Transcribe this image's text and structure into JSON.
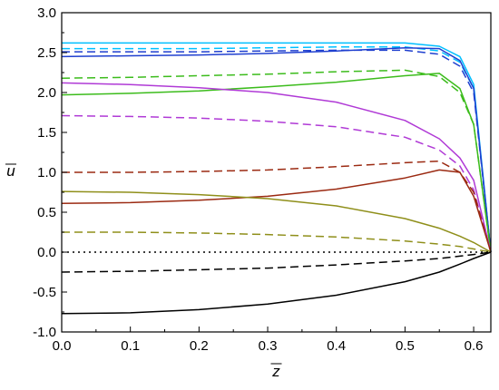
{
  "chart_data": {
    "type": "line",
    "xlabel": "z",
    "ylabel": "u",
    "xlim": [
      0.0,
      0.625
    ],
    "ylim": [
      -1.0,
      3.0
    ],
    "x_ticks": [
      "0.0",
      "0.1",
      "0.2",
      "0.3",
      "0.4",
      "0.5",
      "0.6"
    ],
    "y_ticks": [
      "-1.0",
      "-0.5",
      "0.0",
      "0.5",
      "1.0",
      "1.5",
      "2.0",
      "2.5",
      "3.0"
    ],
    "grid": false,
    "series": [
      {
        "color": "#00bfff",
        "style": "solid",
        "x": [
          0,
          0.1,
          0.2,
          0.3,
          0.4,
          0.5,
          0.55,
          0.58,
          0.6,
          0.625
        ],
        "y": [
          2.62,
          2.62,
          2.62,
          2.62,
          2.62,
          2.62,
          2.58,
          2.45,
          2.1,
          0.0
        ]
      },
      {
        "color": "#00bfff",
        "style": "dashed",
        "x": [
          0,
          0.1,
          0.2,
          0.3,
          0.4,
          0.5,
          0.55,
          0.58,
          0.6,
          0.625
        ],
        "y": [
          2.55,
          2.55,
          2.55,
          2.56,
          2.57,
          2.57,
          2.52,
          2.38,
          2.05,
          0.0
        ]
      },
      {
        "color": "#1f3fcf",
        "style": "solid",
        "x": [
          0,
          0.1,
          0.2,
          0.3,
          0.4,
          0.5,
          0.55,
          0.58,
          0.6,
          0.625
        ],
        "y": [
          2.45,
          2.46,
          2.47,
          2.49,
          2.52,
          2.56,
          2.55,
          2.4,
          2.05,
          0.0
        ]
      },
      {
        "color": "#1f3fcf",
        "style": "dashed",
        "x": [
          0,
          0.1,
          0.2,
          0.3,
          0.4,
          0.5,
          0.55,
          0.58,
          0.6,
          0.625
        ],
        "y": [
          2.51,
          2.51,
          2.51,
          2.52,
          2.53,
          2.53,
          2.48,
          2.33,
          2.0,
          0.0
        ]
      },
      {
        "color": "#3cbc1c",
        "style": "solid",
        "x": [
          0,
          0.1,
          0.2,
          0.3,
          0.4,
          0.5,
          0.55,
          0.58,
          0.6,
          0.625
        ],
        "y": [
          1.97,
          1.99,
          2.02,
          2.07,
          2.13,
          2.21,
          2.24,
          2.05,
          1.6,
          0.0
        ]
      },
      {
        "color": "#3cbc1c",
        "style": "dashed",
        "x": [
          0,
          0.1,
          0.2,
          0.3,
          0.4,
          0.5,
          0.55,
          0.58,
          0.6,
          0.625
        ],
        "y": [
          2.18,
          2.19,
          2.21,
          2.23,
          2.26,
          2.28,
          2.2,
          2.0,
          1.6,
          0.0
        ]
      },
      {
        "color": "#b03ad6",
        "style": "solid",
        "x": [
          0,
          0.1,
          0.2,
          0.3,
          0.4,
          0.5,
          0.55,
          0.58,
          0.6,
          0.625
        ],
        "y": [
          2.12,
          2.1,
          2.06,
          2.0,
          1.88,
          1.65,
          1.42,
          1.18,
          0.9,
          0.0
        ]
      },
      {
        "color": "#b03ad6",
        "style": "dashed",
        "x": [
          0,
          0.1,
          0.2,
          0.3,
          0.4,
          0.5,
          0.55,
          0.58,
          0.6,
          0.625
        ],
        "y": [
          1.71,
          1.7,
          1.68,
          1.64,
          1.57,
          1.44,
          1.28,
          1.08,
          0.78,
          0.0
        ]
      },
      {
        "color": "#9b2a12",
        "style": "solid",
        "x": [
          0,
          0.1,
          0.2,
          0.3,
          0.4,
          0.5,
          0.55,
          0.58,
          0.6,
          0.625
        ],
        "y": [
          0.61,
          0.62,
          0.65,
          0.7,
          0.79,
          0.93,
          1.03,
          1.0,
          0.7,
          0.0
        ]
      },
      {
        "color": "#9b2a12",
        "style": "dashed",
        "x": [
          0,
          0.1,
          0.2,
          0.3,
          0.4,
          0.5,
          0.55,
          0.58,
          0.6,
          0.625
        ],
        "y": [
          1.0,
          1.0,
          1.01,
          1.03,
          1.07,
          1.12,
          1.14,
          1.0,
          0.75,
          0.0
        ]
      },
      {
        "color": "#8f8f1a",
        "style": "solid",
        "x": [
          0,
          0.1,
          0.2,
          0.3,
          0.4,
          0.5,
          0.55,
          0.58,
          0.6,
          0.625
        ],
        "y": [
          0.76,
          0.75,
          0.72,
          0.67,
          0.58,
          0.42,
          0.3,
          0.2,
          0.12,
          0.0
        ]
      },
      {
        "color": "#8f8f1a",
        "style": "dashed",
        "x": [
          0,
          0.1,
          0.2,
          0.3,
          0.4,
          0.5,
          0.55,
          0.58,
          0.6,
          0.625
        ],
        "y": [
          0.25,
          0.25,
          0.24,
          0.22,
          0.19,
          0.14,
          0.1,
          0.07,
          0.04,
          0.0
        ]
      },
      {
        "color": "#000000",
        "style": "dotted",
        "x": [
          0,
          0.625
        ],
        "y": [
          0.0,
          0.0
        ]
      },
      {
        "color": "#000000",
        "style": "dashed",
        "x": [
          0,
          0.1,
          0.2,
          0.3,
          0.4,
          0.5,
          0.55,
          0.58,
          0.6,
          0.625
        ],
        "y": [
          -0.25,
          -0.24,
          -0.22,
          -0.2,
          -0.16,
          -0.11,
          -0.08,
          -0.05,
          -0.03,
          0.0
        ]
      },
      {
        "color": "#000000",
        "style": "solid",
        "x": [
          0,
          0.1,
          0.2,
          0.3,
          0.4,
          0.5,
          0.55,
          0.58,
          0.6,
          0.625
        ],
        "y": [
          -0.77,
          -0.76,
          -0.72,
          -0.65,
          -0.54,
          -0.37,
          -0.25,
          -0.15,
          -0.08,
          0.0
        ]
      }
    ]
  }
}
